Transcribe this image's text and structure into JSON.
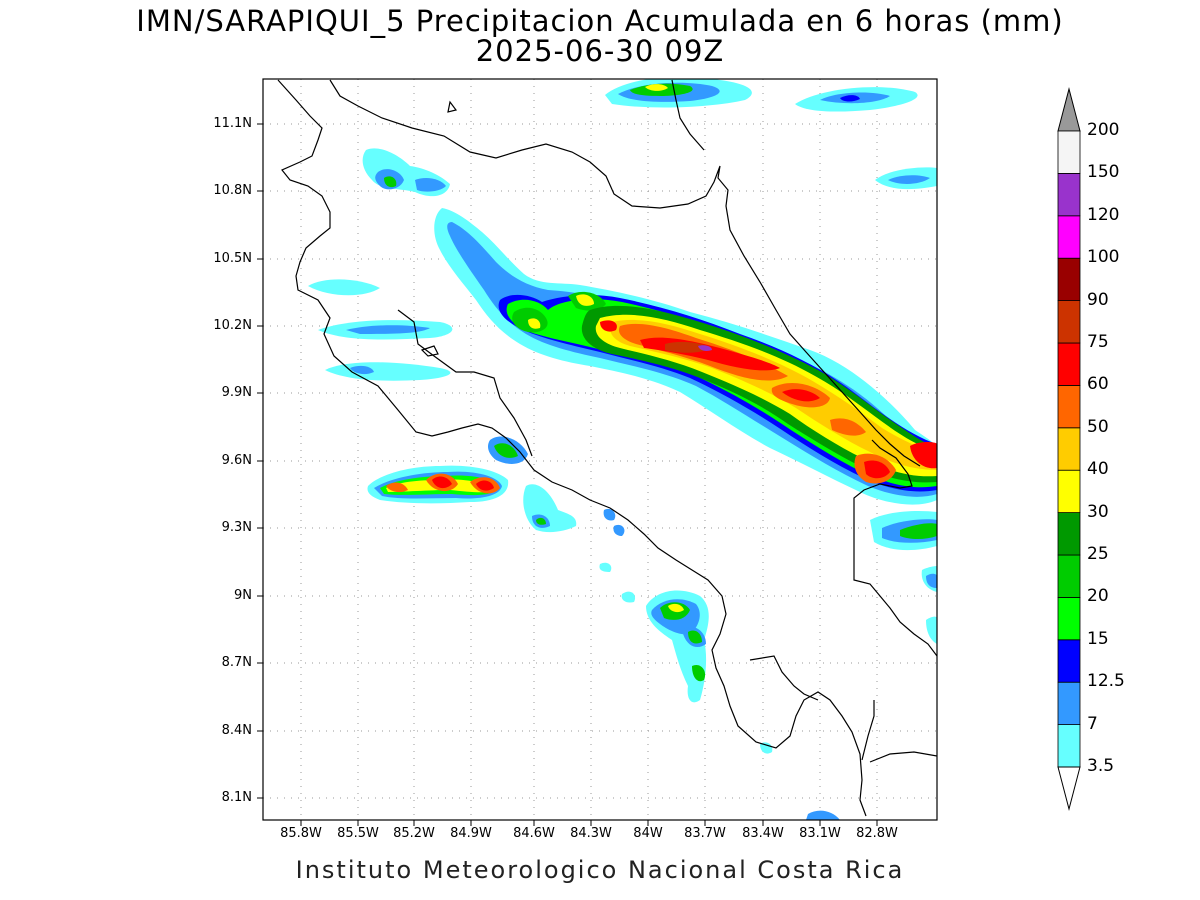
{
  "title_line1": "IMN/SARAPIQUI_5 Precipitacion Acumulada en 6 horas (mm)",
  "title_line2": "2025-06-30 09Z",
  "footer": "Instituto Meteorologico Nacional Costa Rica",
  "lat_ticks": [
    "11.1N",
    "10.8N",
    "10.5N",
    "10.2N",
    "9.9N",
    "9.6N",
    "9.3N",
    "9N",
    "8.7N",
    "8.4N",
    "8.1N"
  ],
  "lon_ticks": [
    "85.8W",
    "85.5W",
    "85.2W",
    "84.9W",
    "84.6W",
    "84.3W",
    "84W",
    "83.7W",
    "83.4W",
    "83.1W",
    "82.8W"
  ],
  "colorbar": {
    "levels": [
      "3.5",
      "7",
      "12.5",
      "15",
      "20",
      "25",
      "30",
      "40",
      "50",
      "60",
      "75",
      "90",
      "100",
      "120",
      "150",
      "200"
    ],
    "colors": [
      "#66ffff",
      "#3399ff",
      "#0000ff",
      "#00ff00",
      "#00cc00",
      "#009900",
      "#ffff00",
      "#ffcc00",
      "#ff6600",
      "#ff0000",
      "#cc3300",
      "#990000",
      "#ff00ff",
      "#9933cc",
      "#f5f5f5"
    ],
    "over_color": "#999999",
    "under_color": "#ffffff"
  }
}
